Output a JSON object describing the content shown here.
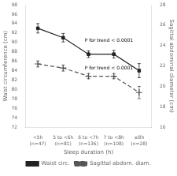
{
  "chart_data": {
    "type": "line",
    "categories": [
      "<5h\n(n=47)",
      "5 to <6h\n(n=81)",
      "6 to <7h\n(n=136)",
      "7 to <8h\n(n=108)",
      "≥8h\n(n=28)"
    ],
    "xlabel": "Sleep duration (h)",
    "ylabel": "Waist circumference (cm)",
    "y2label": "Sagittal abdominal diameter (cm)",
    "series": [
      {
        "name": "Waist circ.",
        "color": "#222222",
        "marker": "square",
        "line_style": "solid",
        "values": [
          93.0,
          91.0,
          87.5,
          87.5,
          84.0
        ],
        "errors": [
          1.0,
          0.9,
          0.7,
          0.8,
          1.5
        ]
      },
      {
        "name": "Sagittal abdorn. diam.",
        "color": "#555555",
        "marker": "plus",
        "line_style": "dashed",
        "axis": "y2",
        "values": [
          22.2,
          21.8,
          21.0,
          21.0,
          19.4
        ],
        "errors": [
          0.3,
          0.3,
          0.25,
          0.25,
          0.6
        ]
      }
    ],
    "ylim": [
      72,
      98
    ],
    "yticks": [
      72,
      74,
      76,
      78,
      80,
      82,
      84,
      86,
      88,
      90,
      92,
      94,
      96,
      98
    ],
    "y2lim": [
      16,
      28
    ],
    "y2ticks": [
      16,
      18,
      20,
      22,
      24,
      26,
      28
    ],
    "annotations": [
      "P for trend < 0.0001",
      "P for trend < 0.0001"
    ],
    "legend": "bottom",
    "grid": false
  }
}
